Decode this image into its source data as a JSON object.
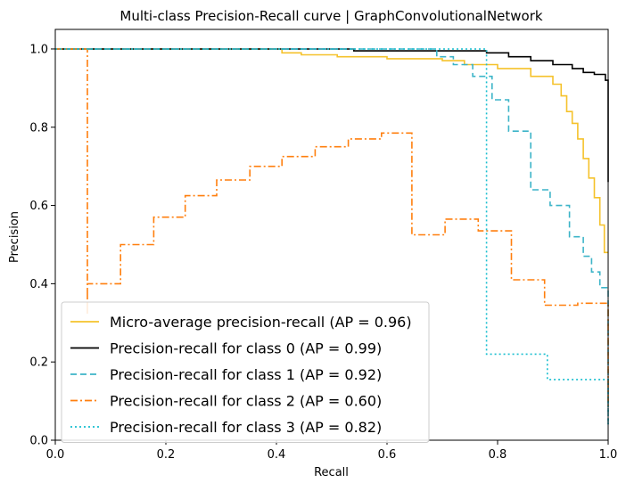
{
  "chart_data": {
    "type": "line",
    "title": "Multi-class Precision-Recall curve | GraphConvolutionalNetwork",
    "xlabel": "Recall",
    "ylabel": "Precision",
    "xlim": [
      0.0,
      1.0
    ],
    "ylim": [
      0.0,
      1.05
    ],
    "x_ticks": [
      0.0,
      0.2,
      0.4,
      0.6,
      0.8,
      1.0
    ],
    "y_ticks": [
      0.0,
      0.2,
      0.4,
      0.6,
      0.8,
      1.0
    ],
    "x_tick_labels": [
      "0.0",
      "0.2",
      "0.4",
      "0.6",
      "0.8",
      "1.0"
    ],
    "y_tick_labels": [
      "0.0",
      "0.2",
      "0.4",
      "0.6",
      "0.8",
      "1.0"
    ],
    "grid": false,
    "legend_position": "lower-left",
    "series": [
      {
        "name": "Micro-average precision-recall (AP = 0.96)",
        "color": "#f5c22b",
        "dash": "solid",
        "x": [
          0.0,
          0.41,
          0.41,
          0.445,
          0.445,
          0.51,
          0.51,
          0.6,
          0.6,
          0.7,
          0.7,
          0.74,
          0.74,
          0.8,
          0.8,
          0.86,
          0.86,
          0.9,
          0.9,
          0.915,
          0.915,
          0.925,
          0.925,
          0.935,
          0.935,
          0.945,
          0.945,
          0.955,
          0.955,
          0.965,
          0.965,
          0.975,
          0.975,
          0.985,
          0.985,
          0.993,
          0.993,
          1.0
        ],
        "y": [
          1.0,
          1.0,
          0.99,
          0.99,
          0.985,
          0.985,
          0.98,
          0.98,
          0.975,
          0.975,
          0.97,
          0.97,
          0.96,
          0.96,
          0.95,
          0.95,
          0.93,
          0.93,
          0.91,
          0.91,
          0.88,
          0.88,
          0.84,
          0.84,
          0.81,
          0.81,
          0.77,
          0.77,
          0.72,
          0.72,
          0.67,
          0.67,
          0.62,
          0.62,
          0.55,
          0.55,
          0.48,
          0.48
        ]
      },
      {
        "name": "Precision-recall for class 0 (AP = 0.99)",
        "color": "#000000",
        "dash": "solid",
        "x": [
          0.0,
          0.54,
          0.54,
          0.78,
          0.78,
          0.82,
          0.82,
          0.86,
          0.86,
          0.9,
          0.9,
          0.935,
          0.935,
          0.955,
          0.955,
          0.975,
          0.975,
          0.995,
          0.995,
          1.0,
          1.0
        ],
        "y": [
          1.0,
          1.0,
          0.995,
          0.995,
          0.99,
          0.99,
          0.98,
          0.98,
          0.97,
          0.97,
          0.96,
          0.96,
          0.95,
          0.95,
          0.94,
          0.94,
          0.935,
          0.935,
          0.92,
          0.92,
          0.66
        ]
      },
      {
        "name": "Precision-recall for class 1 (AP = 0.92)",
        "color": "#3cb4c8",
        "dash": "dashed",
        "x": [
          0.0,
          0.69,
          0.69,
          0.72,
          0.72,
          0.755,
          0.755,
          0.79,
          0.79,
          0.82,
          0.82,
          0.86,
          0.86,
          0.895,
          0.895,
          0.93,
          0.93,
          0.955,
          0.955,
          0.97,
          0.97,
          0.985,
          0.985,
          1.0,
          1.0
        ],
        "y": [
          1.0,
          1.0,
          0.98,
          0.98,
          0.96,
          0.96,
          0.93,
          0.93,
          0.87,
          0.87,
          0.79,
          0.79,
          0.64,
          0.64,
          0.6,
          0.6,
          0.52,
          0.52,
          0.47,
          0.47,
          0.43,
          0.43,
          0.39,
          0.39,
          0.04
        ]
      },
      {
        "name": "Precision-recall for class 2 (AP = 0.60)",
        "color": "#ff7f0e",
        "dash": "dashdot",
        "x": [
          0.0,
          0.058,
          0.058,
          0.058,
          0.058,
          0.118,
          0.118,
          0.178,
          0.178,
          0.235,
          0.235,
          0.292,
          0.292,
          0.352,
          0.352,
          0.41,
          0.41,
          0.47,
          0.47,
          0.53,
          0.53,
          0.59,
          0.59,
          0.645,
          0.645,
          0.705,
          0.705,
          0.765,
          0.765,
          0.825,
          0.825,
          0.885,
          0.885,
          0.945,
          0.945,
          1.0,
          1.0
        ],
        "y": [
          1.0,
          1.0,
          0.32,
          0.4,
          0.4,
          0.4,
          0.5,
          0.5,
          0.57,
          0.57,
          0.625,
          0.625,
          0.665,
          0.665,
          0.7,
          0.7,
          0.725,
          0.725,
          0.75,
          0.75,
          0.77,
          0.77,
          0.785,
          0.785,
          0.525,
          0.525,
          0.565,
          0.565,
          0.535,
          0.535,
          0.41,
          0.41,
          0.345,
          0.345,
          0.35,
          0.35,
          0.08
        ]
      },
      {
        "name": "Precision-recall for class 3 (AP = 0.82)",
        "color": "#17becf",
        "dash": "dotted",
        "x": [
          0.0,
          0.78,
          0.78,
          0.89,
          0.89,
          1.0,
          1.0
        ],
        "y": [
          1.0,
          1.0,
          0.22,
          0.22,
          0.155,
          0.155,
          0.04
        ]
      }
    ]
  }
}
